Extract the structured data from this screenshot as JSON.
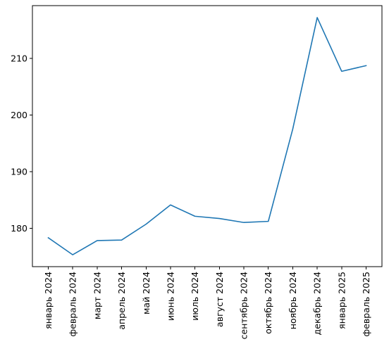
{
  "chart_data": {
    "type": "line",
    "title": "",
    "xlabel": "",
    "ylabel": "",
    "categories": [
      "январь 2024",
      "февраль 2024",
      "март 2024",
      "апрель 2024",
      "май 2024",
      "июнь 2024",
      "июль 2024",
      "август 2024",
      "сентябрь 2024",
      "октябрь 2024",
      "ноябрь 2024",
      "декабрь 2024",
      "январь 2025",
      "февраль 2025"
    ],
    "series": [
      {
        "color": "#1f77b4",
        "values": [
          178.3,
          175.3,
          177.8,
          177.9,
          180.7,
          184.1,
          182.1,
          181.7,
          181.0,
          181.2,
          197.5,
          217.2,
          207.7,
          208.7
        ]
      }
    ],
    "ylim": [
      173.2,
      219.3
    ],
    "yticks": [
      180,
      190,
      200,
      210
    ],
    "grid": false,
    "legend": "none"
  }
}
